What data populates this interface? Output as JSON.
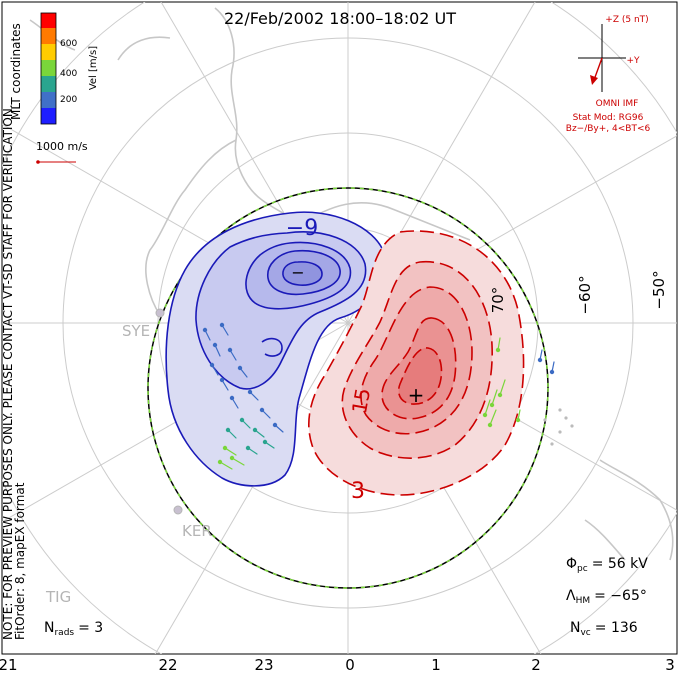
{
  "title": "22/Feb/2002  18:00–18:02  UT",
  "colorbar": {
    "label": "Vel [m/s]",
    "ticks": [
      "600",
      "400",
      "200"
    ],
    "colors": [
      "#ff0000",
      "#ff7a00",
      "#ffcc00",
      "#7ad63a",
      "#2aa58f",
      "#4070c8",
      "#1e1eff"
    ]
  },
  "coordinates_label": "MLT coordinates",
  "vector_scale_label": "1000 m/s",
  "imf": {
    "bz_label": "+Z (5 nT)",
    "by_label": "+Y",
    "source": "OMNI IMF",
    "stat_mod": "Stat Mod: RG96",
    "stat_condition": "Bz−/By+, 4<BT<6"
  },
  "latitude_labels": [
    "−50°",
    "−60°",
    "70°"
  ],
  "contour_labels": {
    "negative": "−9",
    "positive": "15",
    "outer_positive": "3"
  },
  "markers": {
    "min": "−",
    "max": "+"
  },
  "stations": [
    "SYE",
    "KER",
    "TIG"
  ],
  "notes": {
    "preview": "NOTE: FOR PREVIEW PURPOSES ONLY. PLEASE CONTACT VT-SD STAFF FOR VERIFICATION.",
    "fit": "FitOrder: 8, mapEX format"
  },
  "stats": {
    "nrads_label": "N",
    "nrads_sub": "rads",
    "nrads_value": "= 3",
    "phi_label": "Φ",
    "phi_sub": "pc",
    "phi_value": "= 56 kV",
    "hm_label": "Λ",
    "hm_sub": "HM",
    "hm_value": "= −65°",
    "nvc_label": "N",
    "nvc_sub": "vc",
    "nvc_value": "= 136"
  },
  "mlt_hours": [
    "21",
    "22",
    "23",
    "0",
    "1",
    "2",
    "3"
  ]
}
